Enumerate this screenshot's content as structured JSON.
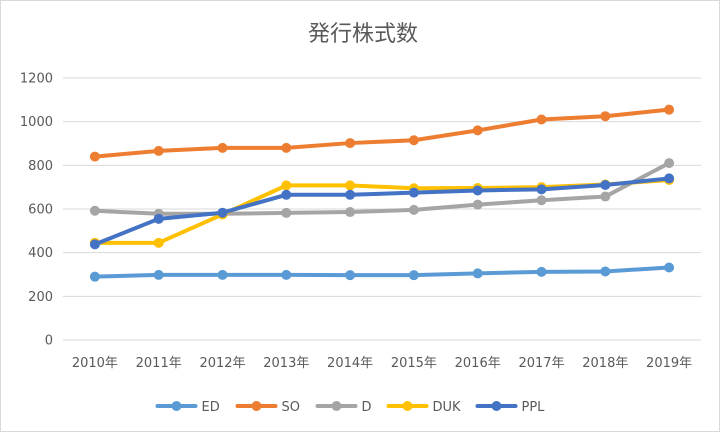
{
  "chart_data": {
    "type": "line",
    "title": "発行株式数",
    "xlabel": "",
    "ylabel": "",
    "categories": [
      "2010年",
      "2011年",
      "2012年",
      "2013年",
      "2014年",
      "2015年",
      "2016年",
      "2017年",
      "2018年",
      "2019年"
    ],
    "ylim": [
      0,
      1200
    ],
    "yticks": [
      0,
      200,
      400,
      600,
      800,
      1000,
      1200
    ],
    "grid": true,
    "legend_position": "bottom",
    "series": [
      {
        "name": "ED",
        "color": "#5B9BD5",
        "values": [
          290,
          298,
          298,
          298,
          297,
          297,
          305,
          312,
          314,
          332
        ]
      },
      {
        "name": "SO",
        "color": "#ED7D31",
        "values": [
          840,
          866,
          880,
          880,
          902,
          915,
          960,
          1010,
          1025,
          1055
        ]
      },
      {
        "name": "D",
        "color": "#A5A5A5",
        "values": [
          592,
          578,
          578,
          582,
          586,
          596,
          620,
          640,
          657,
          810
        ]
      },
      {
        "name": "DUK",
        "color": "#FFC000",
        "values": [
          445,
          445,
          575,
          708,
          708,
          695,
          696,
          700,
          712,
          733
        ]
      },
      {
        "name": "PPL",
        "color": "#4472C4",
        "values": [
          438,
          555,
          583,
          665,
          665,
          675,
          685,
          690,
          710,
          740
        ]
      }
    ]
  }
}
